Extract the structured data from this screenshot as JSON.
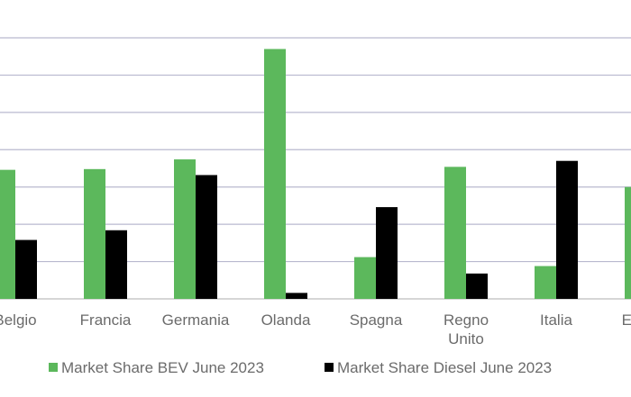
{
  "chart_data": {
    "type": "bar",
    "categories": [
      "Belgio",
      "Francia",
      "Germania",
      "Olanda",
      "Spagna",
      [
        "Regno",
        "Unito"
      ],
      "Italia",
      "Europa"
    ],
    "series": [
      {
        "name": "Market Share BEV June 2023",
        "color": "#5cb85c",
        "values": [
          17.3,
          17.4,
          18.7,
          33.5,
          5.6,
          17.7,
          4.4,
          15.0
        ]
      },
      {
        "name": "Market Share Diesel June 2023",
        "color": "#000000",
        "values": [
          7.9,
          9.2,
          16.6,
          0.8,
          12.3,
          3.4,
          18.5,
          null
        ]
      }
    ],
    "ylim": [
      0,
      35
    ],
    "grid": true,
    "legend_position": "bottom"
  }
}
